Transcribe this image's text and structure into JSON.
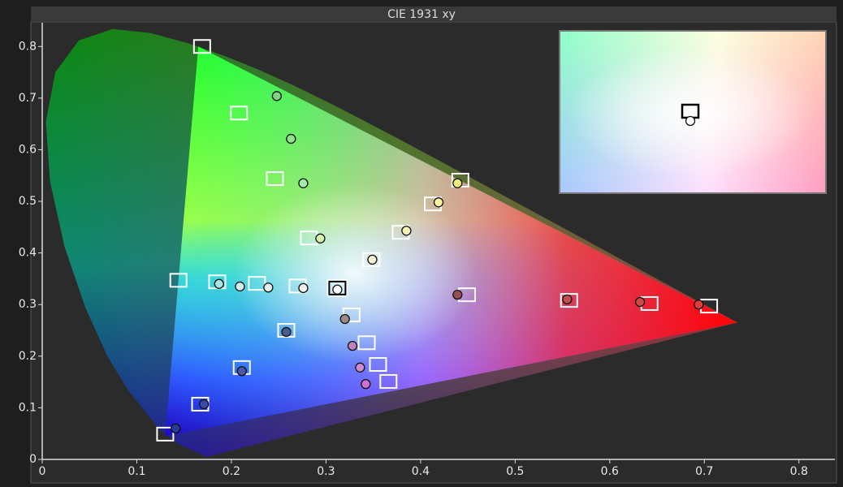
{
  "chart_data": {
    "type": "scatter",
    "title": "CIE 1931 xy",
    "xlim": [
      0,
      0.838
    ],
    "ylim": [
      0,
      0.846
    ],
    "xticks": [
      0,
      0.1,
      0.2,
      0.3,
      0.4,
      0.5,
      0.6,
      0.7,
      0.8
    ],
    "yticks": [
      0,
      0.1,
      0.2,
      0.3,
      0.4,
      0.5,
      0.6,
      0.7,
      0.8
    ],
    "series": [
      {
        "marker": "square",
        "color": "#ffffff",
        "x": [
          0.169,
          0.208,
          0.246,
          0.282,
          0.379,
          0.348,
          0.413,
          0.442,
          0.144,
          0.185,
          0.227,
          0.27,
          0.312,
          0.327,
          0.258,
          0.343,
          0.355,
          0.366,
          0.211,
          0.167,
          0.13,
          0.449,
          0.557,
          0.642,
          0.705
        ],
        "y": [
          0.8,
          0.671,
          0.544,
          0.429,
          0.44,
          0.387,
          0.495,
          0.541,
          0.347,
          0.344,
          0.341,
          0.336,
          0.332,
          0.28,
          0.25,
          0.226,
          0.184,
          0.151,
          0.178,
          0.107,
          0.049,
          0.319,
          0.308,
          0.302,
          0.297
        ]
      },
      {
        "marker": "circle",
        "colors": [
          "#7fd27f",
          "#8fe08f",
          "#a6eea6",
          "#d2f5b0",
          "#f4f4b8",
          "#f6f6d6",
          "#f6f2a0",
          "#f0ee7a",
          "#a8e6e6",
          "#d0eeee",
          "#e4f0f0",
          "#f0f0f0",
          "#ffffff",
          "#9a8a8a",
          "#4a5a8a",
          "#c080c0",
          "#d08ad0",
          "#d070d0",
          "#4a5aa8",
          "#3a4aa8",
          "#2a3a98",
          "#9a5050",
          "#c05050",
          "#d04848",
          "#e03a3a"
        ],
        "x": [
          0.248,
          0.263,
          0.276,
          0.294,
          0.385,
          0.349,
          0.419,
          0.439,
          0.187,
          0.209,
          0.239,
          0.276,
          0.312,
          0.32,
          0.258,
          0.328,
          0.336,
          0.342,
          0.211,
          0.171,
          0.141,
          0.439,
          0.555,
          0.632,
          0.694
        ],
        "y": [
          0.704,
          0.621,
          0.535,
          0.428,
          0.443,
          0.387,
          0.498,
          0.535,
          0.34,
          0.335,
          0.333,
          0.332,
          0.329,
          0.272,
          0.247,
          0.22,
          0.178,
          0.146,
          0.171,
          0.107,
          0.06,
          0.319,
          0.31,
          0.305,
          0.3
        ]
      }
    ],
    "inset_index": 12
  }
}
